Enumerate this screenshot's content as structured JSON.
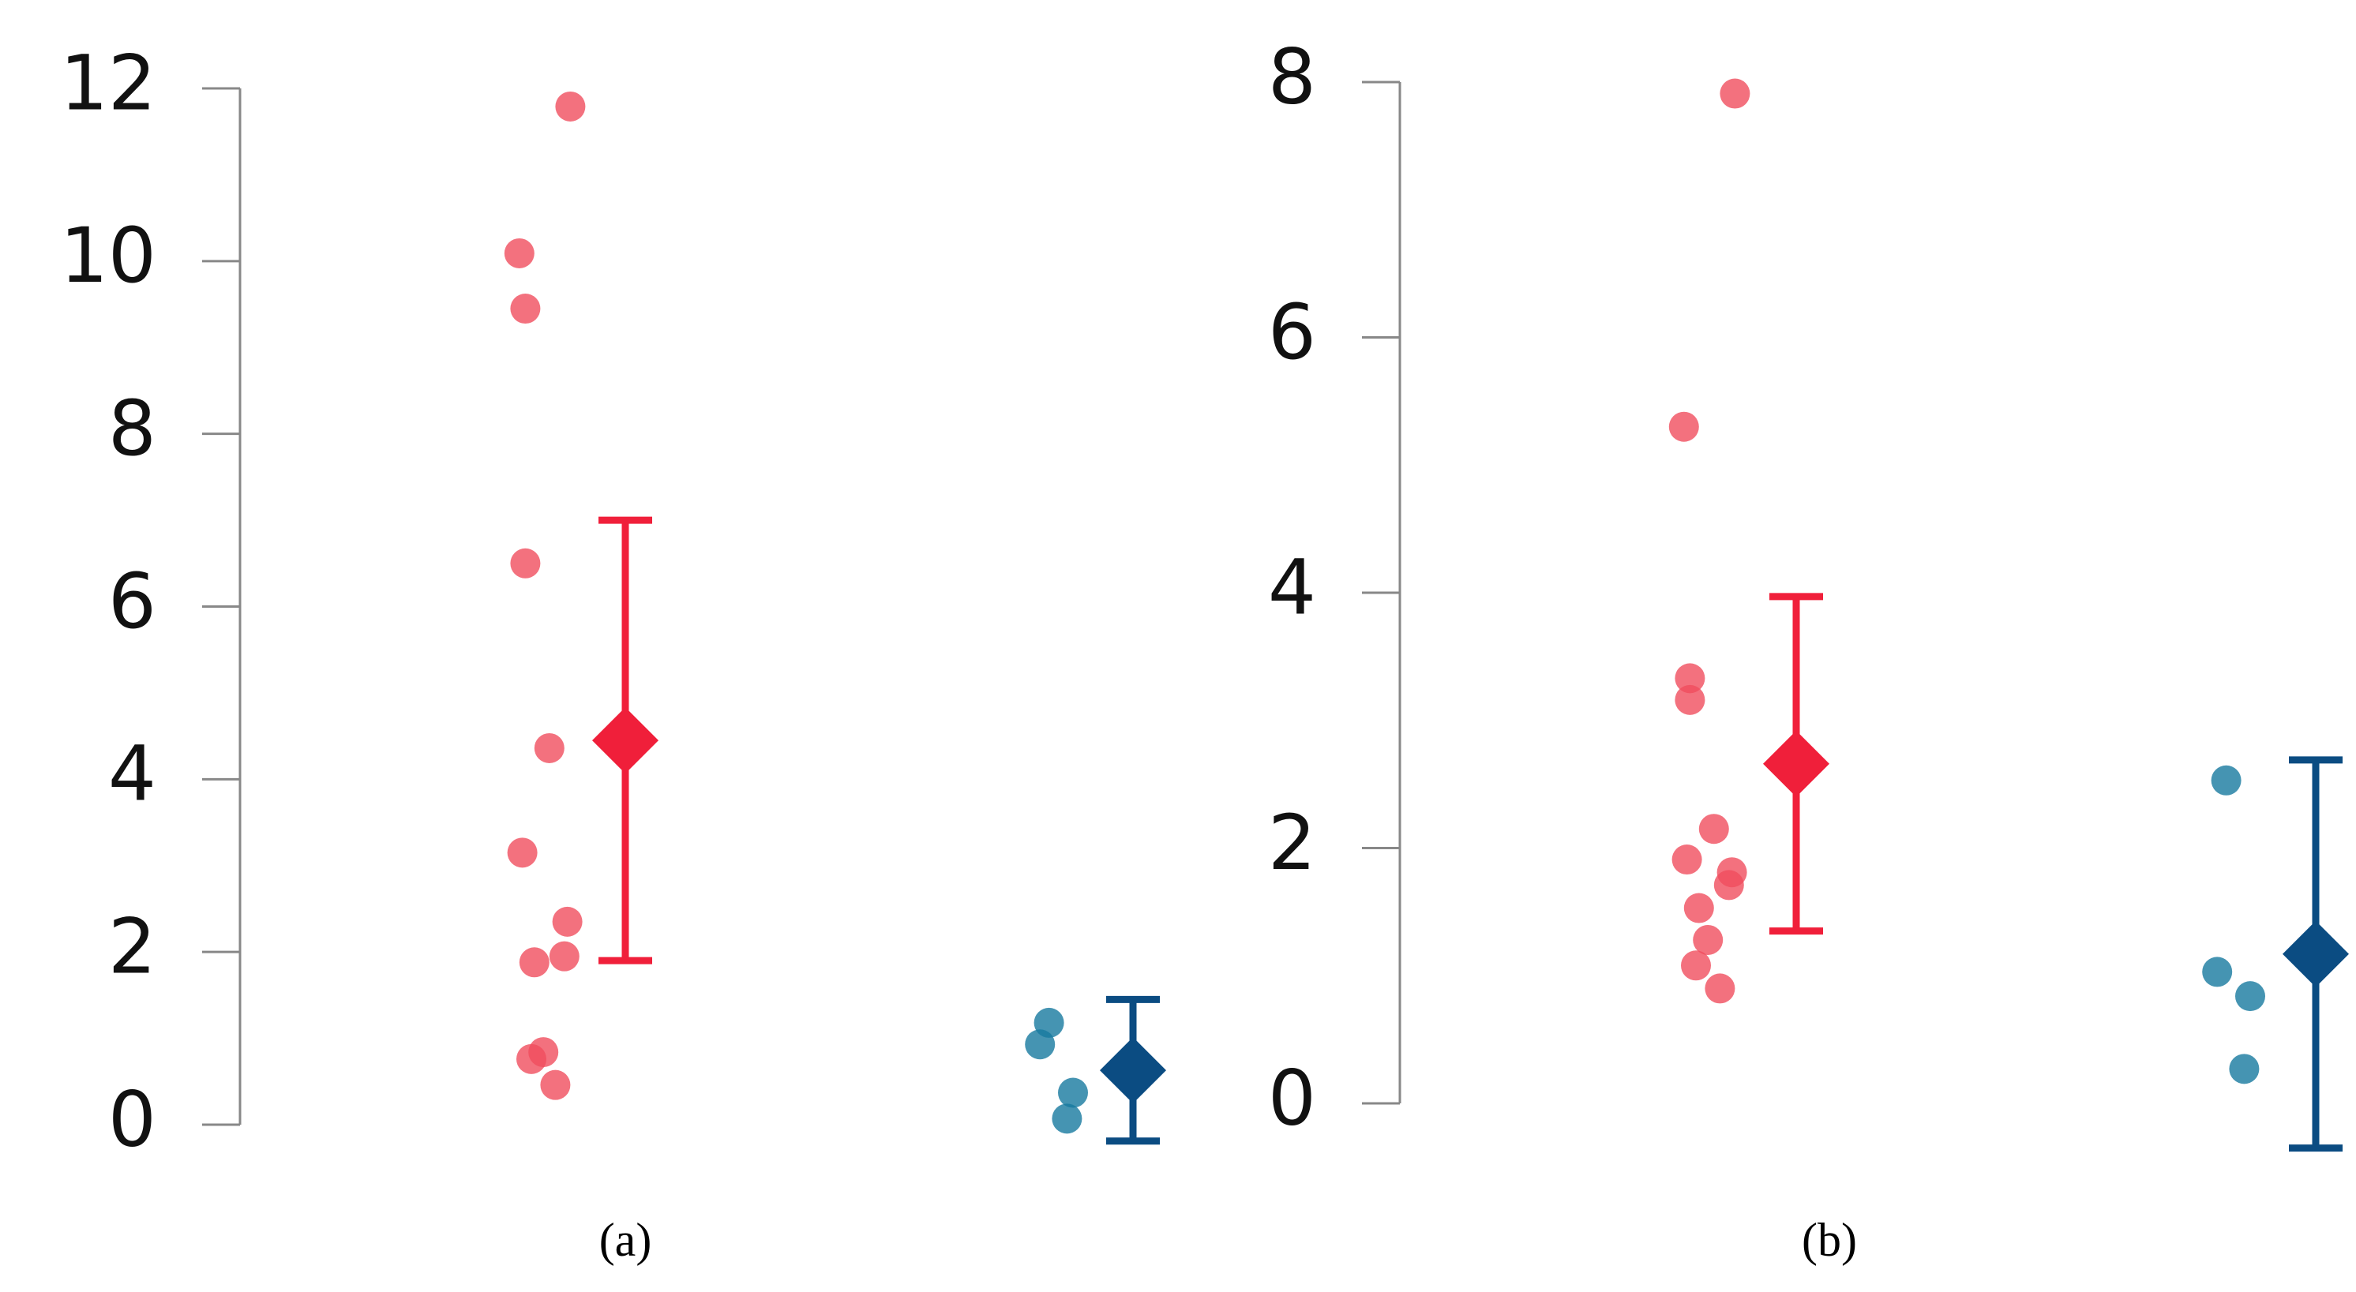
{
  "chart_data": [
    {
      "type": "strip",
      "label": "(a)",
      "ylim": [
        0,
        12
      ],
      "yticks": [
        0,
        2,
        4,
        6,
        8,
        10,
        12
      ],
      "series": [
        {
          "color": "#f04e5e",
          "mean_color": "#f01f3a",
          "values": [
            11.79,
            10.09,
            9.45,
            6.5,
            4.36,
            3.15,
            2.35,
            1.95,
            1.88,
            0.84,
            0.76,
            0.46
          ],
          "mean": 4.45,
          "error": 2.55
        },
        {
          "color": "#17799f",
          "mean_color": "#0b4c82",
          "values": [
            1.18,
            0.93,
            0.37,
            0.07
          ],
          "mean": 0.63,
          "error": 0.82
        }
      ]
    },
    {
      "type": "strip",
      "label": "(b)",
      "ylim": [
        0,
        8
      ],
      "yticks": [
        0,
        2,
        4,
        6,
        8
      ],
      "series": [
        {
          "color": "#f04e5e",
          "mean_color": "#f01f3a",
          "values": [
            7.91,
            5.3,
            3.33,
            3.16,
            2.15,
            1.91,
            1.81,
            1.71,
            1.53,
            1.28,
            1.08,
            0.9
          ],
          "mean": 2.66,
          "error": 1.31
        },
        {
          "color": "#17799f",
          "mean_color": "#0b4c82",
          "values": [
            2.53,
            1.03,
            0.84,
            0.27
          ],
          "mean": 1.17,
          "error": 1.52
        }
      ]
    }
  ]
}
